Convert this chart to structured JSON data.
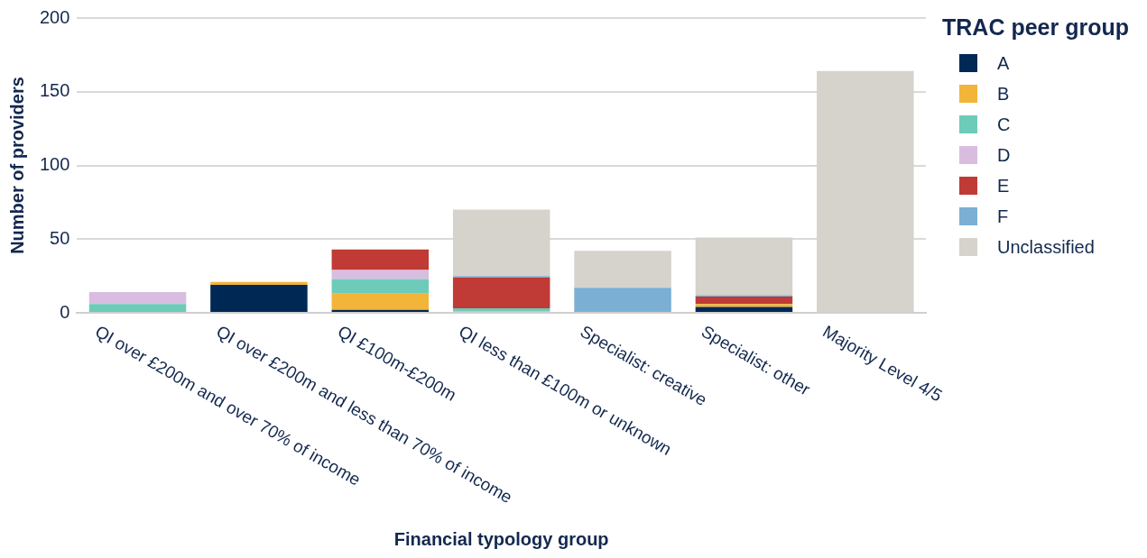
{
  "chart_data": {
    "type": "bar",
    "stacked": true,
    "xlabel": "Financial typology group",
    "ylabel": "Number of providers",
    "legend_title": "TRAC peer group",
    "categories": [
      "QI over £200m and over 70% of income",
      "QI over £200m and less than 70% of income",
      "QI £100m-£200m",
      "QI less than £100m or unknown",
      "Specialist: creative",
      "Specialist: other",
      "Majority Level 4/5"
    ],
    "series": [
      {
        "name": "A",
        "color": "#002855",
        "values": [
          0,
          19,
          2,
          0,
          0,
          4,
          0
        ]
      },
      {
        "name": "B",
        "color": "#f2b53a",
        "values": [
          0,
          2,
          11,
          1,
          0,
          2,
          0
        ]
      },
      {
        "name": "C",
        "color": "#6dcbb9",
        "values": [
          6,
          0,
          10,
          2,
          0,
          0,
          0
        ]
      },
      {
        "name": "D",
        "color": "#d9bde0",
        "values": [
          8,
          0,
          6,
          0,
          0,
          0,
          0
        ]
      },
      {
        "name": "E",
        "color": "#c03a36",
        "values": [
          0,
          0,
          14,
          21,
          0,
          5,
          0
        ]
      },
      {
        "name": "F",
        "color": "#7bafd4",
        "values": [
          0,
          0,
          0,
          1,
          17,
          1,
          0
        ]
      },
      {
        "name": "Unclassified",
        "color": "#d6d2cc",
        "values": [
          0,
          0,
          0,
          45,
          25,
          39,
          164
        ]
      }
    ],
    "ylim": [
      0,
      200
    ],
    "yticks": [
      0,
      50,
      100,
      150,
      200
    ],
    "grid": "y",
    "legend": "top right"
  }
}
